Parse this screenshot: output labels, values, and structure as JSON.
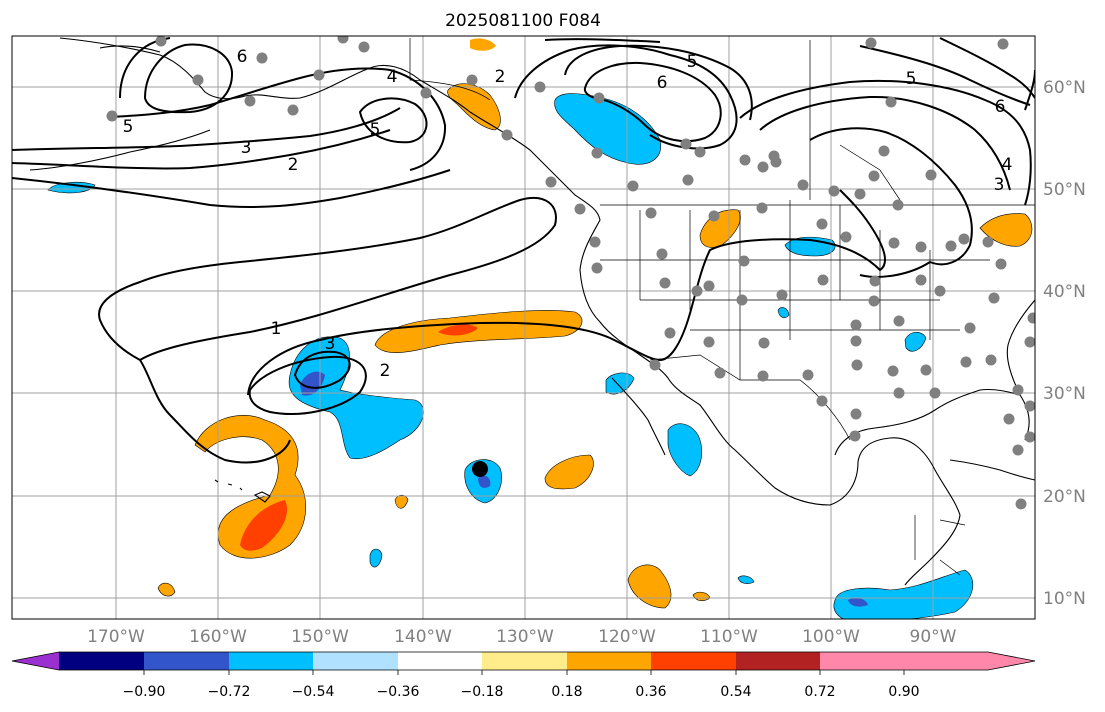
{
  "title": "2025081100 F084",
  "lat_labels": [
    "60°N",
    "50°N",
    "40°N",
    "30°N",
    "20°N",
    "10°N"
  ],
  "lon_labels": [
    "170°W",
    "160°W",
    "150°W",
    "140°W",
    "130°W",
    "120°W",
    "110°W",
    "100°W",
    "90°W"
  ],
  "colorbar": {
    "colors": [
      "#9b30d0",
      "#000080",
      "#3355cc",
      "#00bfff",
      "#b0e2ff",
      "#ffffff",
      "#ffec8b",
      "#ffa500",
      "#ff4000",
      "#b22222",
      "#ff88aa"
    ],
    "tick_labels": [
      "−0.90",
      "−0.72",
      "−0.54",
      "−0.36",
      "−0.18",
      "0.18",
      "0.36",
      "0.54",
      "0.72",
      "0.90"
    ]
  },
  "contour_labels": [
    "6",
    "5",
    "4",
    "2",
    "5",
    "3",
    "2",
    "5",
    "6",
    "5",
    "6",
    "4",
    "3",
    "1",
    "3",
    "2"
  ],
  "colors": {
    "positive": "#ffa500",
    "strong_positive": "#ff4000",
    "negative": "#00bfff",
    "strong_negative": "#3355cc",
    "station": "#808080",
    "grid": "#a0a0a0"
  }
}
